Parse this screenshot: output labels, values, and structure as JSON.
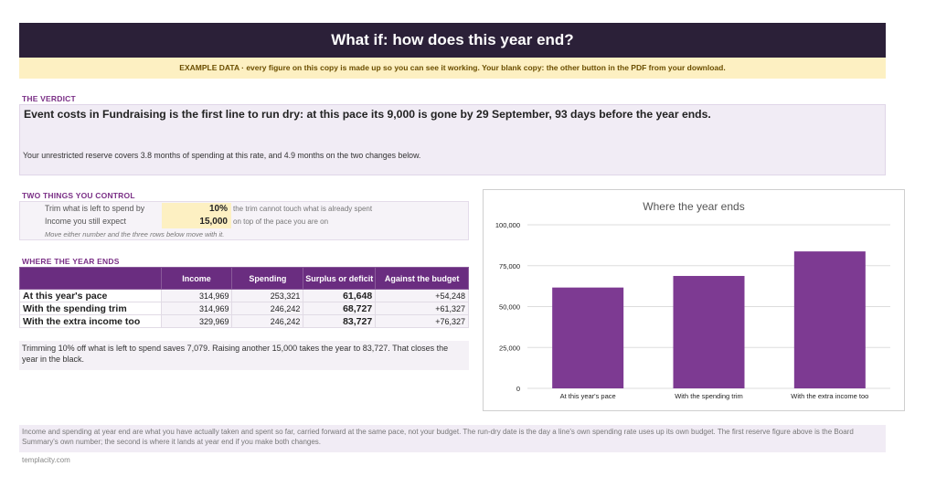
{
  "header": {
    "title": "What if: how does this year end?"
  },
  "banner": {
    "text": "EXAMPLE DATA  ·  every figure on this copy is made up so you can see it working. Your blank copy: the other button in the PDF from your download."
  },
  "verdict": {
    "section_title": "THE VERDICT",
    "headline": "Event costs in Fundraising is the first line to run dry: at this pace its 9,000 is gone by 29 September, 93 days before the year ends.",
    "subline": "Your unrestricted reserve covers 3.8 months of spending at this rate, and 4.9 months on the two changes below."
  },
  "controls": {
    "section_title": "TWO THINGS YOU CONTROL",
    "trim": {
      "label": "Trim what is left to spend by",
      "value": "10%",
      "note": "the trim cannot touch what is already spent"
    },
    "income": {
      "label": "Income you still expect",
      "value": "15,000",
      "note": "on top of the pace you are on"
    },
    "hint": "Move either number and the three rows below move with it."
  },
  "results": {
    "section_title": "WHERE THE YEAR ENDS",
    "columns": [
      "Income",
      "Spending",
      "Surplus or deficit",
      "Against the budget"
    ],
    "rows": [
      {
        "label": "At this year's pace",
        "income": "314,969",
        "spending": "253,321",
        "surplus": "61,648",
        "budget": "+54,248"
      },
      {
        "label": "With the spending trim",
        "income": "314,969",
        "spending": "246,242",
        "surplus": "68,727",
        "budget": "+61,327"
      },
      {
        "label": "With the extra income too",
        "income": "329,969",
        "spending": "246,242",
        "surplus": "83,727",
        "budget": "+76,327"
      }
    ]
  },
  "summary": {
    "text": "Trimming 10% off what is left to spend saves 7,079. Raising another 15,000 takes the year to 83,727. That closes the year in the black."
  },
  "footer": {
    "note": "Income and spending at year end are what you have actually taken and spent so far, carried forward at the same pace, not your budget. The run-dry date is the day a line's own spending rate uses up its own budget. The first reserve figure above is the Board Summary's own number; the second is where it lands at year end if you make both changes.",
    "credit": "templacity.com"
  },
  "colors": {
    "header_bg": "#2b2038",
    "accent": "#7a2f86",
    "bar": "#7d3a92",
    "input_bg": "#fdf0c2"
  },
  "chart_data": {
    "type": "bar",
    "title": "Where the year ends",
    "categories": [
      "At this year's pace",
      "With the spending trim",
      "With the extra income too"
    ],
    "values": [
      61648,
      68727,
      83727
    ],
    "ylim": [
      0,
      100000
    ],
    "yticks": [
      0,
      25000,
      50000,
      75000,
      100000
    ],
    "ytick_labels": [
      "0",
      "25,000",
      "50,000",
      "75,000",
      "100,000"
    ],
    "grid": true,
    "legend": "none"
  }
}
